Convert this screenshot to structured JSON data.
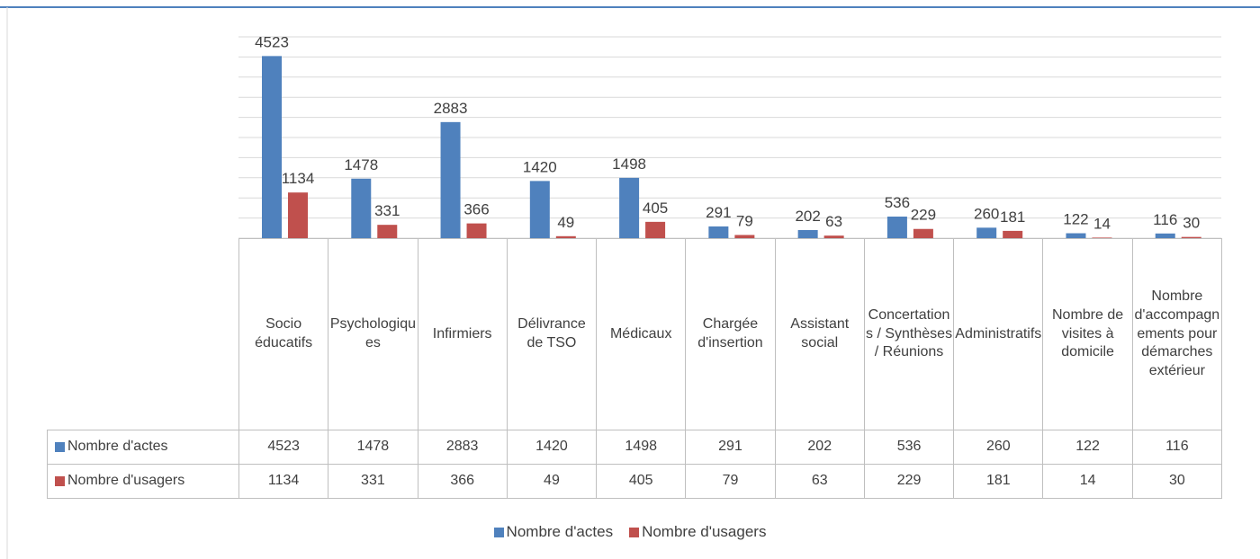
{
  "chart_data": {
    "type": "bar",
    "categories": [
      "Socio éducatifs",
      "Psychologiques",
      "Infirmiers",
      "Délivrance de TSO",
      "Médicaux",
      "Chargée d'insertion",
      "Assistant social",
      "Concertations / Synthèses / Réunions",
      "Administratifs",
      "Nombre de visites à domicile",
      "Nombre d'accompagnements pour démarches extérieur"
    ],
    "series": [
      {
        "name": "Nombre d'actes",
        "color": "#4f81bd",
        "values": [
          4523,
          1478,
          2883,
          1420,
          1498,
          291,
          202,
          536,
          260,
          122,
          116
        ]
      },
      {
        "name": "Nombre d'usagers",
        "color": "#c0504d",
        "values": [
          1134,
          331,
          366,
          49,
          405,
          79,
          63,
          229,
          181,
          14,
          30
        ]
      }
    ],
    "ylim": [
      0,
      5000
    ],
    "yticks": [
      0,
      500,
      1000,
      1500,
      2000,
      2500,
      3000,
      3500,
      4000,
      4500,
      5000
    ],
    "grid": true,
    "legend": "bottom"
  }
}
